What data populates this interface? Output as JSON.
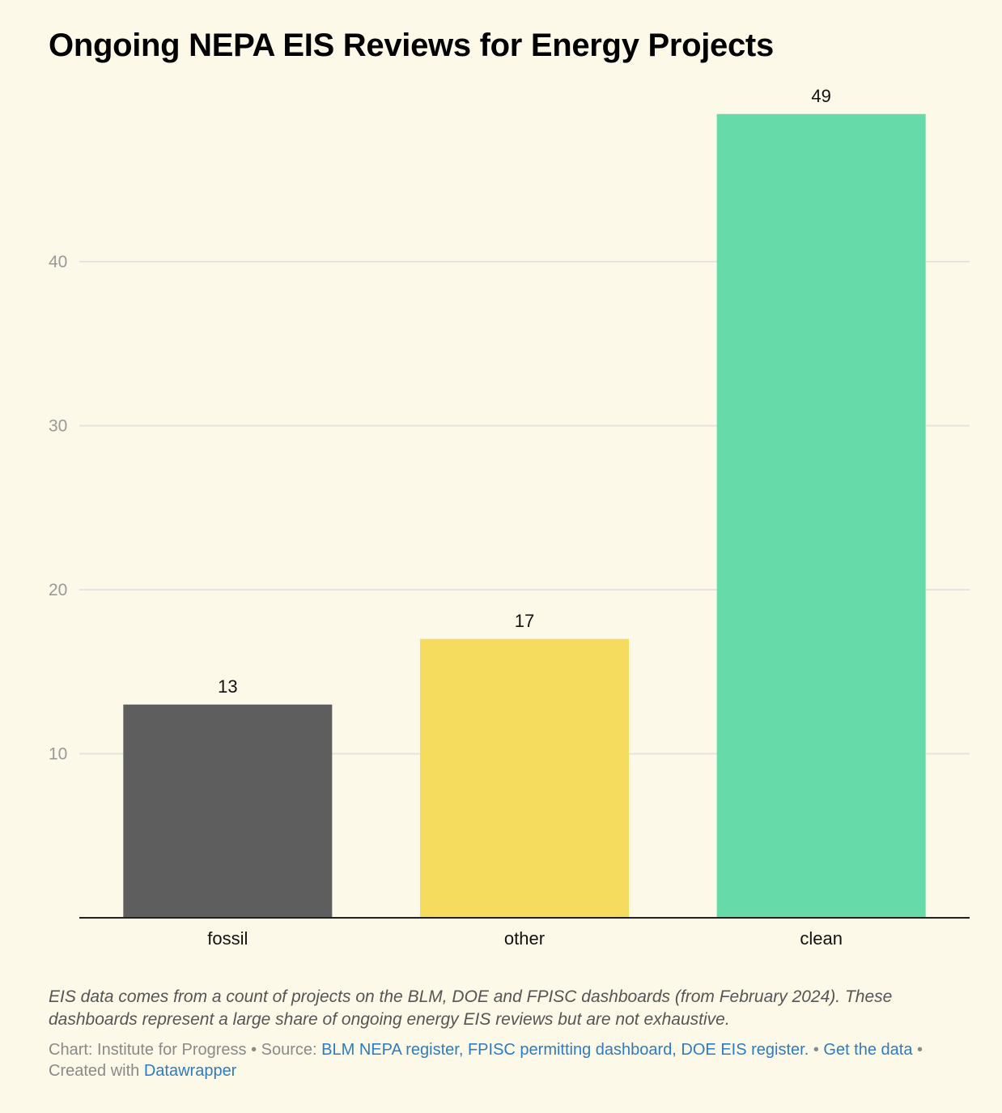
{
  "title": "Ongoing NEPA EIS Reviews for Energy Projects",
  "chart_data": {
    "type": "bar",
    "categories": [
      "fossil",
      "other",
      "clean"
    ],
    "values": [
      13,
      17,
      49
    ],
    "colors": [
      "#5e5e5e",
      "#f5dc5e",
      "#66daa9"
    ],
    "ylim": [
      0,
      49
    ],
    "yticks": [
      10,
      20,
      30,
      40
    ],
    "grid": true,
    "data_labels": true,
    "xlabel": "",
    "ylabel": ""
  },
  "notes": "EIS data comes from a count of projects on the BLM, DOE and FPISC dashboards (from February 2024). These dashboards represent a large share of ongoing energy EIS reviews but are not exhaustive.",
  "footer": {
    "chart_credit": "Chart: Institute for Progress",
    "separator": " • ",
    "source_label": "Source: ",
    "source_link": "BLM NEPA register, FPISC permitting dashboard, DOE EIS register.",
    "get_data": "Get the data",
    "created_with": "Created with ",
    "tool": "Datawrapper"
  },
  "colors": {
    "background": "#fcf9e8",
    "gridline": "#e6e4dc",
    "axis": "#222222",
    "tick_text": "#999999",
    "link": "#2f7bbf"
  }
}
